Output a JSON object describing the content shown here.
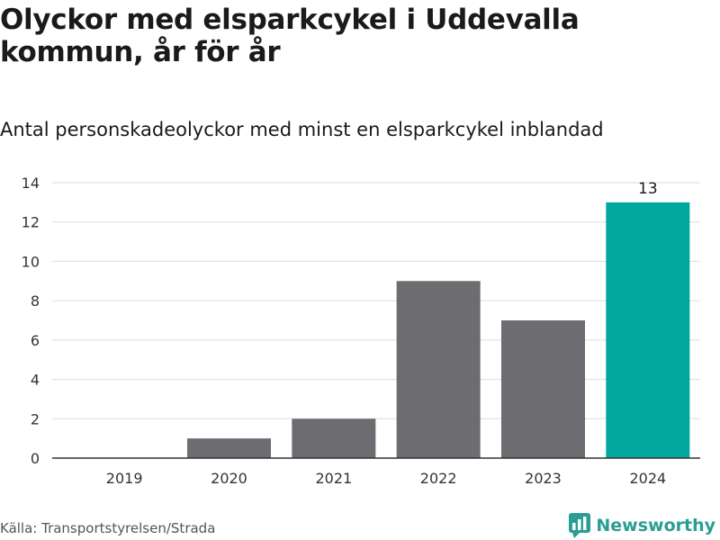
{
  "title": "Olyckor med elsparkcykel i Uddevalla kommun, år för år",
  "subtitle": "Antal personskadeolyckor med minst en elsparkcykel inblandad",
  "source": "Källa: Transportstyrelsen/Strada",
  "brand": "Newsworthy",
  "colors": {
    "bar": "#6d6c71",
    "highlight": "#00a79d",
    "grid": "#dddddd",
    "axis": "#333333",
    "brand": "#2a9d94"
  },
  "chart_data": {
    "type": "bar",
    "categories": [
      "2019",
      "2020",
      "2021",
      "2022",
      "2023",
      "2024"
    ],
    "values": [
      0,
      1,
      2,
      9,
      7,
      13
    ],
    "highlight_index": 5,
    "data_labels": [
      {
        "index": 5,
        "text": "13"
      }
    ],
    "ylim": [
      0,
      14
    ],
    "yticks": [
      0,
      2,
      4,
      6,
      8,
      10,
      12,
      14
    ],
    "xlabel": "",
    "ylabel": "",
    "grid": true
  }
}
